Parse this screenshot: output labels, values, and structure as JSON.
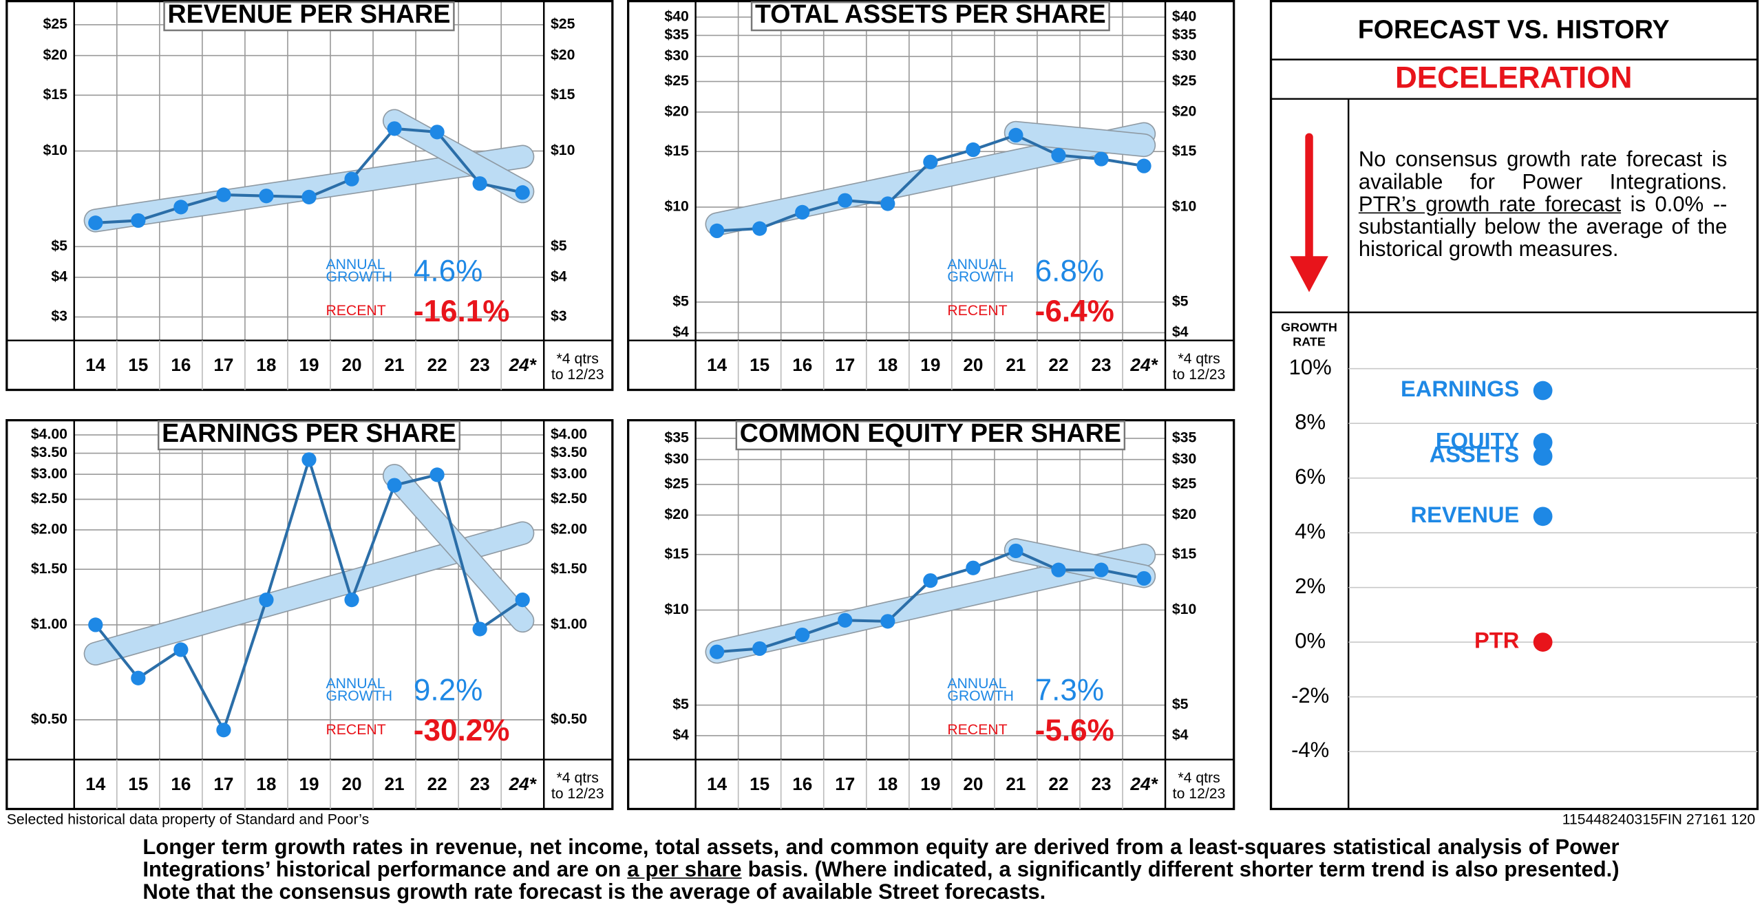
{
  "chart_data": [
    {
      "type": "line",
      "title": "REVENUE PER SHARE",
      "log_scale": true,
      "grid": true,
      "categories": [
        "14",
        "15",
        "16",
        "17",
        "18",
        "19",
        "20",
        "21",
        "22",
        "23",
        "24*"
      ],
      "values": [
        5.94,
        6.04,
        6.66,
        7.28,
        7.22,
        7.16,
        8.16,
        11.77,
        11.48,
        7.9,
        7.4
      ],
      "long_trend": [
        6.04,
        6.33,
        6.63,
        6.94,
        7.27,
        7.61,
        7.97,
        8.35,
        8.75,
        9.16,
        9.6
      ],
      "recent_trend": [
        null,
        null,
        null,
        null,
        null,
        null,
        null,
        12.45,
        10.5,
        8.85,
        7.46
      ],
      "color": "#1e88e5",
      "line_color": "#2b6ea8",
      "trend_color": "#bcdcf4",
      "ylim": [
        2.53,
        29.2
      ],
      "yticks": [
        {
          "value": 3,
          "label": "$3"
        },
        {
          "value": 4,
          "label": "$4"
        },
        {
          "value": 5,
          "label": "$5"
        },
        {
          "value": 10,
          "label": "$10"
        },
        {
          "value": 15,
          "label": "$15"
        },
        {
          "value": 20,
          "label": "$20"
        },
        {
          "value": 25,
          "label": "$25"
        }
      ],
      "x_note": [
        "*4 qtrs",
        "to 12/23"
      ],
      "annual_label": [
        "ANNUAL",
        "GROWTH"
      ],
      "annual_growth": "4.6%",
      "recent_label": "RECENT",
      "recent_growth": "-16.1%"
    },
    {
      "type": "line",
      "title": "TOTAL ASSETS PER SHARE",
      "log_scale": true,
      "grid": true,
      "categories": [
        "14",
        "15",
        "16",
        "17",
        "18",
        "19",
        "20",
        "21",
        "22",
        "23",
        "24*"
      ],
      "values": [
        8.41,
        8.55,
        9.63,
        10.5,
        10.25,
        13.9,
        15.2,
        16.9,
        14.6,
        14.2,
        13.5
      ],
      "long_trend": [
        8.83,
        9.43,
        10.07,
        10.76,
        11.49,
        12.27,
        13.1,
        13.99,
        14.95,
        15.96,
        17.05
      ],
      "recent_trend": [
        null,
        null,
        null,
        null,
        null,
        null,
        null,
        17.2,
        16.7,
        16.2,
        15.7
      ],
      "color": "#1e88e5",
      "line_color": "#2b6ea8",
      "trend_color": "#bcdcf4",
      "ylim": [
        3.78,
        44.2
      ],
      "yticks": [
        {
          "value": 4,
          "label": "$4"
        },
        {
          "value": 5,
          "label": "$5"
        },
        {
          "value": 10,
          "label": "$10"
        },
        {
          "value": 15,
          "label": "$15"
        },
        {
          "value": 20,
          "label": "$20"
        },
        {
          "value": 25,
          "label": "$25"
        },
        {
          "value": 30,
          "label": "$30"
        },
        {
          "value": 35,
          "label": "$35"
        },
        {
          "value": 40,
          "label": "$40"
        }
      ],
      "x_note": [
        "*4 qtrs",
        "to 12/23"
      ],
      "annual_label": [
        "ANNUAL",
        "GROWTH"
      ],
      "annual_growth": "6.8%",
      "recent_label": "RECENT",
      "recent_growth": "-6.4%"
    },
    {
      "type": "line",
      "title": "EARNINGS PER SHARE",
      "log_scale": true,
      "grid": true,
      "categories": [
        "14",
        "15",
        "16",
        "17",
        "18",
        "19",
        "20",
        "21",
        "22",
        "23",
        "24*"
      ],
      "values": [
        1.0,
        0.678,
        0.834,
        0.464,
        1.2,
        3.34,
        1.2,
        2.77,
        2.99,
        0.97,
        1.2
      ],
      "long_trend": [
        0.81,
        0.885,
        0.966,
        1.055,
        1.152,
        1.258,
        1.373,
        1.5,
        1.638,
        1.788,
        1.953
      ],
      "recent_trend": [
        null,
        null,
        null,
        null,
        null,
        null,
        null,
        2.97,
        2.09,
        1.47,
        1.03
      ],
      "color": "#1e88e5",
      "line_color": "#2b6ea8",
      "trend_color": "#bcdcf4",
      "ylim": [
        0.374,
        4.38
      ],
      "yticks": [
        {
          "value": 0.5,
          "label": "$0.50"
        },
        {
          "value": 1,
          "label": "$1.00"
        },
        {
          "value": 1.5,
          "label": "$1.50"
        },
        {
          "value": 2,
          "label": "$2.00"
        },
        {
          "value": 2.5,
          "label": "$2.50"
        },
        {
          "value": 3,
          "label": "$3.00"
        },
        {
          "value": 3.5,
          "label": "$3.50"
        },
        {
          "value": 4,
          "label": "$4.00"
        }
      ],
      "x_note": [
        "*4 qtrs",
        "to 12/23"
      ],
      "annual_label": [
        "ANNUAL",
        "GROWTH"
      ],
      "annual_growth": "9.2%",
      "recent_label": "RECENT",
      "recent_growth": "-30.2%"
    },
    {
      "type": "line",
      "title": "COMMON EQUITY PER SHARE",
      "log_scale": true,
      "grid": true,
      "categories": [
        "14",
        "15",
        "16",
        "17",
        "18",
        "19",
        "20",
        "21",
        "22",
        "23",
        "24*"
      ],
      "values": [
        7.37,
        7.55,
        8.34,
        9.28,
        9.21,
        12.4,
        13.6,
        15.4,
        13.4,
        13.4,
        12.6
      ],
      "long_trend": [
        7.37,
        7.91,
        8.49,
        9.1,
        9.77,
        10.48,
        11.24,
        12.06,
        12.94,
        13.89,
        14.9
      ],
      "recent_trend": [
        null,
        null,
        null,
        null,
        null,
        null,
        null,
        15.5,
        14.54,
        13.64,
        12.8
      ],
      "color": "#1e88e5",
      "line_color": "#2b6ea8",
      "trend_color": "#bcdcf4",
      "ylim": [
        3.36,
        39.3
      ],
      "yticks": [
        {
          "value": 4,
          "label": "$4"
        },
        {
          "value": 5,
          "label": "$5"
        },
        {
          "value": 10,
          "label": "$10"
        },
        {
          "value": 15,
          "label": "$15"
        },
        {
          "value": 20,
          "label": "$20"
        },
        {
          "value": 25,
          "label": "$25"
        },
        {
          "value": 30,
          "label": "$30"
        },
        {
          "value": 35,
          "label": "$35"
        }
      ],
      "x_note": [
        "*4 qtrs",
        "to 12/23"
      ],
      "annual_label": [
        "ANNUAL",
        "GROWTH"
      ],
      "annual_growth": "7.3%",
      "recent_label": "RECENT",
      "recent_growth": "-5.6%"
    },
    {
      "type": "dot",
      "title": "FORECAST VS. HISTORY",
      "subtitle": "DECELERATION",
      "description": [
        "No consensus growth rate forecast is available for Power Integrations. ",
        "PTR’s growth rate forecast",
        " is 0.0% --  substantially below the average of the historical growth measures."
      ],
      "y_label": [
        "GROWTH",
        "RATE"
      ],
      "grid": true,
      "categories": [
        "EARNINGS",
        "EQUITY",
        "ASSETS",
        "REVENUE",
        "PTR"
      ],
      "values": [
        9.2,
        7.3,
        6.8,
        4.6,
        0.0
      ],
      "colors": [
        "#1e88e5",
        "#1e88e5",
        "#1e88e5",
        "#1e88e5",
        "#e8141b"
      ],
      "ylim": [
        -6.1,
        12.06
      ],
      "yticks": [
        {
          "value": 10,
          "label": "10%"
        },
        {
          "value": 8,
          "label": "8%"
        },
        {
          "value": 6,
          "label": "6%"
        },
        {
          "value": 4,
          "label": "4%"
        },
        {
          "value": 2,
          "label": "2%"
        },
        {
          "value": 0,
          "label": "0%"
        },
        {
          "value": -2,
          "label": "-2%"
        },
        {
          "value": -4,
          "label": "-4%"
        }
      ]
    }
  ],
  "footer": {
    "source": "Selected historical data property of Standard and Poor’s",
    "code": "115448240315FIN 27161 120",
    "note": [
      "Longer term growth rates in revenue, net income, total assets, and common equity are derived from a least-squares  statistical analysis of Power Integrations’ historical performance and are on ",
      "a per share",
      " basis. (Where indicated, a significantly different shorter term trend is also presented.) Note that the consensus growth rate forecast is the average of available Street forecasts."
    ]
  }
}
